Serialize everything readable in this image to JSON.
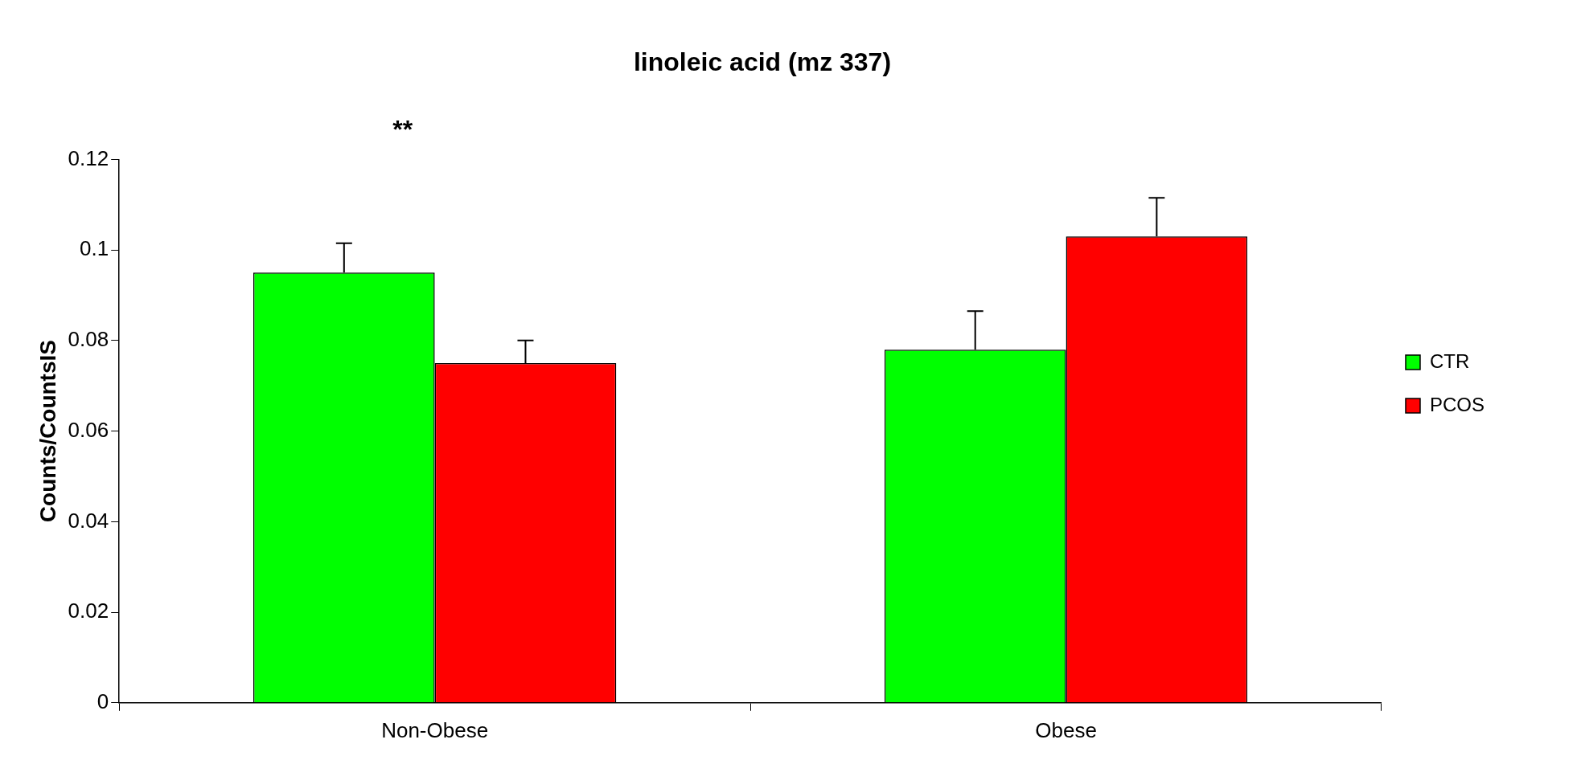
{
  "chart_data": {
    "type": "bar",
    "title": "linoleic acid (mz 337)",
    "ylabel": "Counts/CountsIS",
    "categories": [
      "Non-Obese",
      "Obese"
    ],
    "series": [
      {
        "name": "CTR",
        "color": "#00ff00",
        "values": [
          0.095,
          0.078
        ],
        "errors": [
          [
            0.095,
            0.1015
          ],
          [
            0.078,
            0.0865
          ]
        ]
      },
      {
        "name": "PCOS",
        "color": "#ff0000",
        "values": [
          0.075,
          0.103
        ],
        "errors": [
          [
            0.075,
            0.08
          ],
          [
            0.103,
            0.1115
          ]
        ]
      }
    ],
    "ylim": [
      0,
      0.12
    ],
    "yticks": [
      0,
      0.02,
      0.04,
      0.06,
      0.08,
      0.1,
      0.12
    ],
    "grid": false,
    "legend": "right",
    "annotations": [
      "**"
    ]
  }
}
